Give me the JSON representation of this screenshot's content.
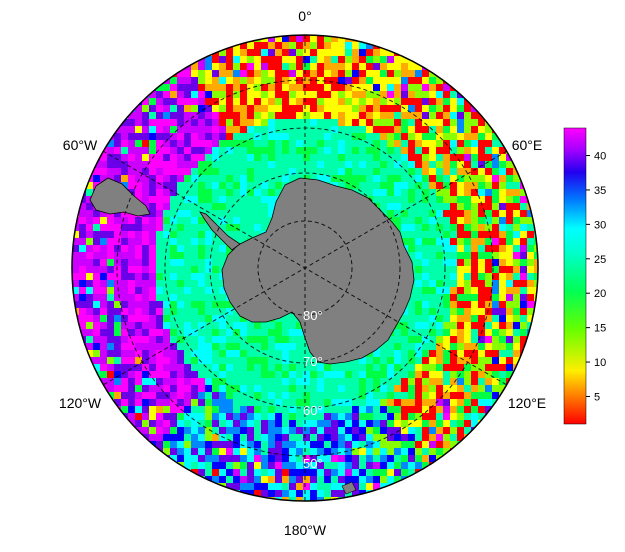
{
  "map": {
    "projection": "south-polar-stereographic",
    "longitude_labels": {
      "top": "0°",
      "bottom": "180°W",
      "upper_left": "60°W",
      "upper_right": "60°E",
      "lower_left": "120°W",
      "lower_right": "120°E"
    },
    "latitude_labels": [
      "80°",
      "70°",
      "60°",
      "50°"
    ],
    "land_color": "#808080",
    "colormap": [
      "#ff0000",
      "#ffaa00",
      "#ffff00",
      "#88ff00",
      "#00ff44",
      "#00ffaa",
      "#00ffff",
      "#0088ff",
      "#0000ff",
      "#6a00e8",
      "#cc00ff",
      "#ff00ff"
    ]
  },
  "colorbar": {
    "ticks": [
      "40",
      "35",
      "30",
      "25",
      "20",
      "15",
      "10",
      "5"
    ],
    "range": [
      1,
      44
    ]
  }
}
